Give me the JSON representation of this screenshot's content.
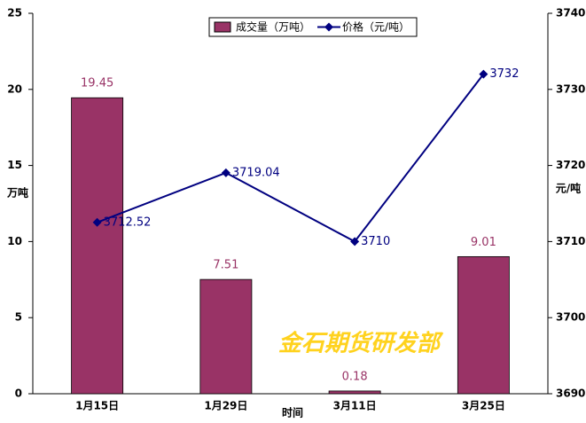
{
  "chart_data": {
    "type": "bar",
    "categories": [
      "1月15日",
      "1月29日",
      "3月11日",
      "3月25日"
    ],
    "series": [
      {
        "name": "成交量（万吨）",
        "type": "bar",
        "color": "#993366",
        "values": [
          19.45,
          7.51,
          0.18,
          9.01
        ]
      },
      {
        "name": "价格（元/吨）",
        "type": "line",
        "axis": "y2",
        "color": "#000080",
        "values": [
          3712.52,
          3719.04,
          3710,
          3732
        ]
      }
    ],
    "ylim": [
      0,
      25
    ],
    "yticks": [
      0,
      5,
      10,
      15,
      20,
      25
    ],
    "y2lim": [
      3690,
      3740
    ],
    "y2ticks": [
      3690,
      3700,
      3710,
      3720,
      3730,
      3740
    ],
    "ylabel": "万吨",
    "y2label": "元/吨",
    "xlabel": "时间",
    "annotation": "金石期货研发部",
    "grid": false,
    "legend": "top"
  }
}
